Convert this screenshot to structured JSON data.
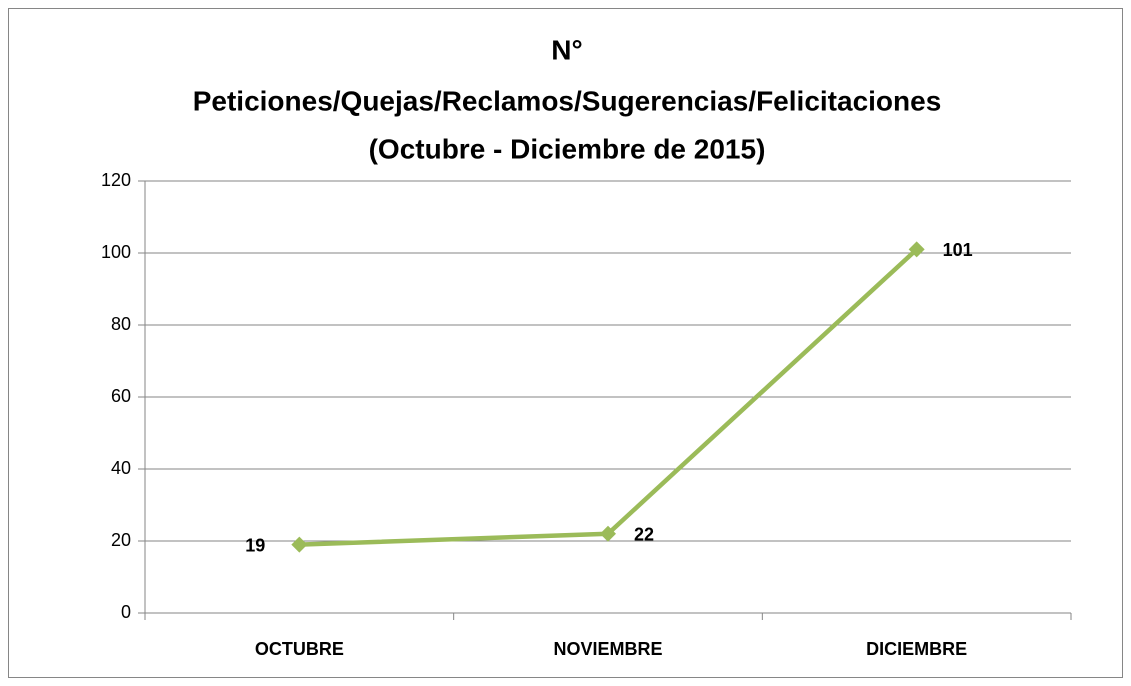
{
  "chart_data": {
    "type": "line",
    "title": [
      "N°",
      "Peticiones/Quejas/Reclamos/Sugerencias/Felicitaciones",
      "(Octubre - Diciembre de 2015)"
    ],
    "categories": [
      "OCTUBRE",
      "NOVIEMBRE",
      "DICIEMBRE"
    ],
    "series": [
      {
        "name": "N° Peticiones/Quejas/Reclamos/Sugerencias/Felicitaciones",
        "color": "#9bbb59",
        "values": [
          19,
          22,
          101
        ]
      }
    ],
    "ylim": [
      0,
      120
    ],
    "yticks": [
      0,
      20,
      40,
      60,
      80,
      100,
      120
    ],
    "grid": true,
    "legend": false
  }
}
